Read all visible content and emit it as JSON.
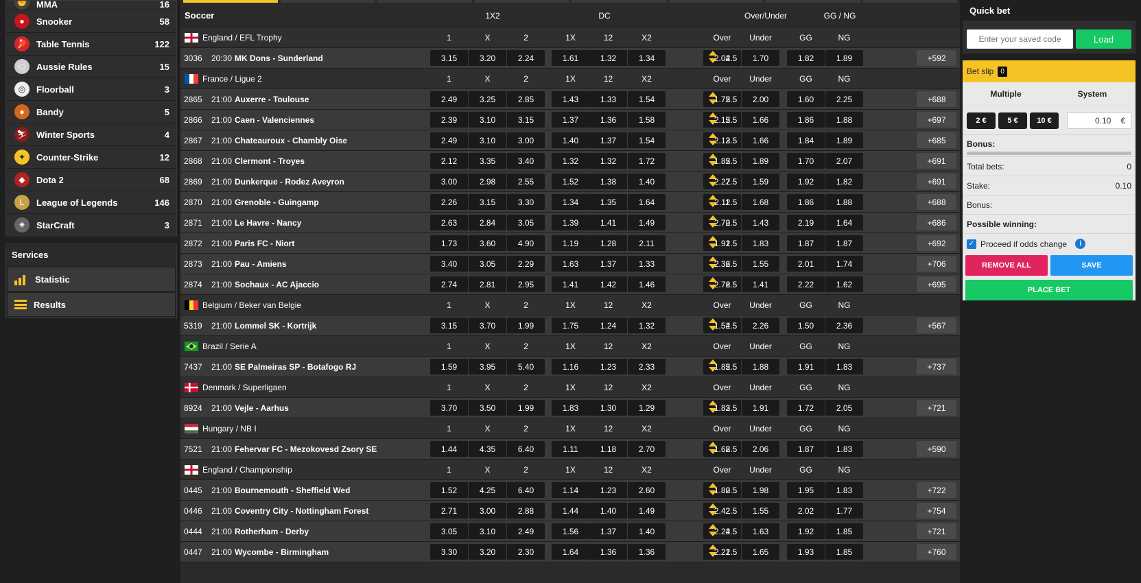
{
  "sidebar": {
    "sports": [
      {
        "name": "MMA",
        "count": "16",
        "icon": "mma-icon",
        "color": "#444"
      },
      {
        "name": "Snooker",
        "count": "58",
        "icon": "snooker-icon",
        "color": "#c4161c"
      },
      {
        "name": "Table Tennis",
        "count": "122",
        "icon": "table-tennis-icon",
        "color": "#d8262e"
      },
      {
        "name": "Aussie Rules",
        "count": "15",
        "icon": "aussie-rules-icon",
        "color": "#cfcfcf"
      },
      {
        "name": "Floorball",
        "count": "3",
        "icon": "floorball-icon",
        "color": "#eeeeee"
      },
      {
        "name": "Bandy",
        "count": "5",
        "icon": "bandy-icon",
        "color": "#d2691e"
      },
      {
        "name": "Winter Sports",
        "count": "4",
        "icon": "winter-sports-icon",
        "color": "#8b1a1a"
      },
      {
        "name": "Counter-Strike",
        "count": "12",
        "icon": "counter-strike-icon",
        "color": "#f6c325"
      },
      {
        "name": "Dota 2",
        "count": "68",
        "icon": "dota2-icon",
        "color": "#b22222"
      },
      {
        "name": "League of Legends",
        "count": "146",
        "icon": "league-of-legends-icon",
        "color": "#c8a14a"
      },
      {
        "name": "StarCraft",
        "count": "3",
        "icon": "starcraft-icon",
        "color": "#666"
      }
    ],
    "services_title": "Services",
    "services": [
      {
        "label": "Statistic",
        "icon": "statistic-icon"
      },
      {
        "label": "Results",
        "icon": "results-icon"
      }
    ]
  },
  "main": {
    "sport_title": "Soccer",
    "groups": [
      "1X2",
      "DC",
      "Over/Under",
      "GG / NG"
    ],
    "columns": [
      "1",
      "X",
      "2",
      "1X",
      "12",
      "X2",
      "Over",
      "Under",
      "GG",
      "NG"
    ],
    "leagues": [
      {
        "name": "England / EFL Trophy",
        "flag": "england",
        "matches": [
          {
            "id": "3036",
            "time": "20:30",
            "teams": "MK Dons - Sunderland",
            "odds": [
              "3.15",
              "3.20",
              "2.24",
              "1.61",
              "1.32",
              "1.34",
              "2.04",
              "1.70",
              "1.82",
              "1.89"
            ],
            "line": "2.5",
            "more": "+592"
          }
        ]
      },
      {
        "name": "France / Ligue 2",
        "flag": "france",
        "matches": [
          {
            "id": "2865",
            "time": "21:00",
            "teams": "Auxerre - Toulouse",
            "odds": [
              "2.49",
              "3.25",
              "2.85",
              "1.43",
              "1.33",
              "1.54",
              "1.75",
              "2.00",
              "1.60",
              "2.25"
            ],
            "line": "2.5",
            "more": "+688"
          },
          {
            "id": "2866",
            "time": "21:00",
            "teams": "Caen - Valenciennes",
            "odds": [
              "2.39",
              "3.10",
              "3.15",
              "1.37",
              "1.36",
              "1.58",
              "2.15",
              "1.66",
              "1.86",
              "1.88"
            ],
            "line": "2.5",
            "more": "+697"
          },
          {
            "id": "2867",
            "time": "21:00",
            "teams": "Chateauroux - Chambly Oise",
            "odds": [
              "2.49",
              "3.10",
              "3.00",
              "1.40",
              "1.37",
              "1.54",
              "2.13",
              "1.66",
              "1.84",
              "1.89"
            ],
            "line": "2.5",
            "more": "+685"
          },
          {
            "id": "2868",
            "time": "21:00",
            "teams": "Clermont - Troyes",
            "odds": [
              "2.12",
              "3.35",
              "3.40",
              "1.32",
              "1.32",
              "1.72",
              "1.85",
              "1.89",
              "1.70",
              "2.07"
            ],
            "line": "2.5",
            "more": "+691"
          },
          {
            "id": "2869",
            "time": "21:00",
            "teams": "Dunkerque - Rodez Aveyron",
            "odds": [
              "3.00",
              "2.98",
              "2.55",
              "1.52",
              "1.38",
              "1.40",
              "2.27",
              "1.59",
              "1.92",
              "1.82"
            ],
            "line": "2.5",
            "more": "+691"
          },
          {
            "id": "2870",
            "time": "21:00",
            "teams": "Grenoble - Guingamp",
            "odds": [
              "2.26",
              "3.15",
              "3.30",
              "1.34",
              "1.35",
              "1.64",
              "2.11",
              "1.68",
              "1.86",
              "1.88"
            ],
            "line": "2.5",
            "more": "+688"
          },
          {
            "id": "2871",
            "time": "21:00",
            "teams": "Le Havre - Nancy",
            "odds": [
              "2.63",
              "2.84",
              "3.05",
              "1.39",
              "1.41",
              "1.49",
              "2.70",
              "1.43",
              "2.19",
              "1.64"
            ],
            "line": "2.5",
            "more": "+686"
          },
          {
            "id": "2872",
            "time": "21:00",
            "teams": "Paris FC - Niort",
            "odds": [
              "1.73",
              "3.60",
              "4.90",
              "1.19",
              "1.28",
              "2.11",
              "1.91",
              "1.83",
              "1.87",
              "1.87"
            ],
            "line": "2.5",
            "more": "+692"
          },
          {
            "id": "2873",
            "time": "21:00",
            "teams": "Pau - Amiens",
            "odds": [
              "3.40",
              "3.05",
              "2.29",
              "1.63",
              "1.37",
              "1.33",
              "2.36",
              "1.55",
              "2.01",
              "1.74"
            ],
            "line": "2.5",
            "more": "+706"
          },
          {
            "id": "2874",
            "time": "21:00",
            "teams": "Sochaux - AC Ajaccio",
            "odds": [
              "2.74",
              "2.81",
              "2.95",
              "1.41",
              "1.42",
              "1.46",
              "2.76",
              "1.41",
              "2.22",
              "1.62"
            ],
            "line": "2.5",
            "more": "+695"
          }
        ]
      },
      {
        "name": "Belgium / Beker van Belgie",
        "flag": "belgium",
        "matches": [
          {
            "id": "5319",
            "time": "21:00",
            "teams": "Lommel SK - Kortrijk",
            "odds": [
              "3.15",
              "3.70",
              "1.99",
              "1.75",
              "1.24",
              "1.32",
              "1.54",
              "2.26",
              "1.50",
              "2.36"
            ],
            "line": "2.5",
            "more": "+567"
          }
        ]
      },
      {
        "name": "Brazil / Serie A",
        "flag": "brazil",
        "matches": [
          {
            "id": "7437",
            "time": "21:00",
            "teams": "SE Palmeiras SP - Botafogo RJ",
            "odds": [
              "1.59",
              "3.95",
              "5.40",
              "1.16",
              "1.23",
              "2.33",
              "1.85",
              "1.88",
              "1.91",
              "1.83"
            ],
            "line": "2.5",
            "more": "+737"
          }
        ]
      },
      {
        "name": "Denmark / Superligaen",
        "flag": "denmark",
        "matches": [
          {
            "id": "8924",
            "time": "21:00",
            "teams": "Vejle - Aarhus",
            "odds": [
              "3.70",
              "3.50",
              "1.99",
              "1.83",
              "1.30",
              "1.29",
              "1.83",
              "1.91",
              "1.72",
              "2.05"
            ],
            "line": "2.5",
            "more": "+721"
          }
        ]
      },
      {
        "name": "Hungary / NB I",
        "flag": "hungary",
        "matches": [
          {
            "id": "7521",
            "time": "21:00",
            "teams": "Fehervar FC - Mezokovesd Zsory SE",
            "odds": [
              "1.44",
              "4.35",
              "6.40",
              "1.11",
              "1.18",
              "2.70",
              "1.68",
              "2.06",
              "1.87",
              "1.83"
            ],
            "line": "2.5",
            "more": "+590"
          }
        ]
      },
      {
        "name": "England / Championship",
        "flag": "england",
        "matches": [
          {
            "id": "0445",
            "time": "21:00",
            "teams": "Bournemouth - Sheffield Wed",
            "odds": [
              "1.52",
              "4.25",
              "6.40",
              "1.14",
              "1.23",
              "2.60",
              "1.80",
              "1.98",
              "1.95",
              "1.83"
            ],
            "line": "2.5",
            "more": "+722"
          },
          {
            "id": "0446",
            "time": "21:00",
            "teams": "Coventry City - Nottingham Forest",
            "odds": [
              "2.71",
              "3.00",
              "2.88",
              "1.44",
              "1.40",
              "1.49",
              "2.42",
              "1.55",
              "2.02",
              "1.77"
            ],
            "line": "2.5",
            "more": "+754"
          },
          {
            "id": "0444",
            "time": "21:00",
            "teams": "Rotherham - Derby",
            "odds": [
              "3.05",
              "3.10",
              "2.49",
              "1.56",
              "1.37",
              "1.40",
              "2.24",
              "1.63",
              "1.92",
              "1.85"
            ],
            "line": "2.5",
            "more": "+721"
          },
          {
            "id": "0447",
            "time": "21:00",
            "teams": "Wycombe - Birmingham",
            "odds": [
              "3.30",
              "3.20",
              "2.30",
              "1.64",
              "1.36",
              "1.36",
              "2.21",
              "1.65",
              "1.93",
              "1.85"
            ],
            "line": "2.5",
            "more": "+760"
          }
        ]
      }
    ]
  },
  "quickbet": {
    "title": "Quick bet",
    "placeholder": "Enter your saved code",
    "load_label": "Load"
  },
  "betslip": {
    "title": "Bet slip",
    "count": "0",
    "tab_multiple": "Multiple",
    "tab_system": "System",
    "chips": [
      "2 €",
      "5 €",
      "10 €"
    ],
    "stake_value": "0.10",
    "currency": "€",
    "bonus_label": "Bonus:",
    "total_bets_label": "Total bets:",
    "total_bets_value": "0",
    "stake_label": "Stake:",
    "stake_display": "0.10",
    "bonus2_label": "Bonus:",
    "possible_winning_label": "Possible winning:",
    "proceed_label": "Proceed if odds change",
    "remove_all_label": "REMOVE ALL",
    "save_label": "SAVE",
    "place_bet_label": "PLACE BET"
  },
  "colors": {
    "accent": "#f6c325",
    "green": "#17c964",
    "red": "#e0245e",
    "blue": "#2196f3"
  }
}
